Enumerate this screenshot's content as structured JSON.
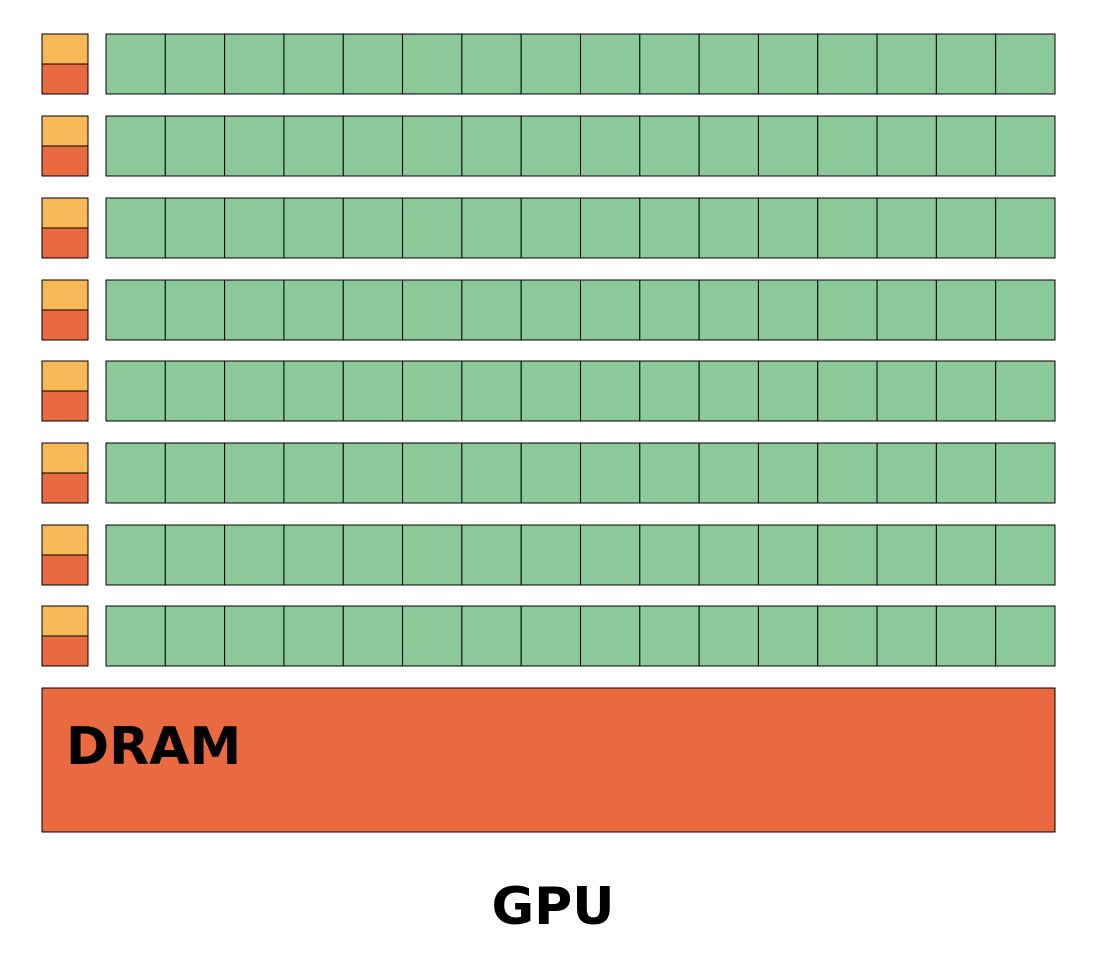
{
  "dram": {
    "label": "DRAM"
  },
  "caption": "GPU"
}
